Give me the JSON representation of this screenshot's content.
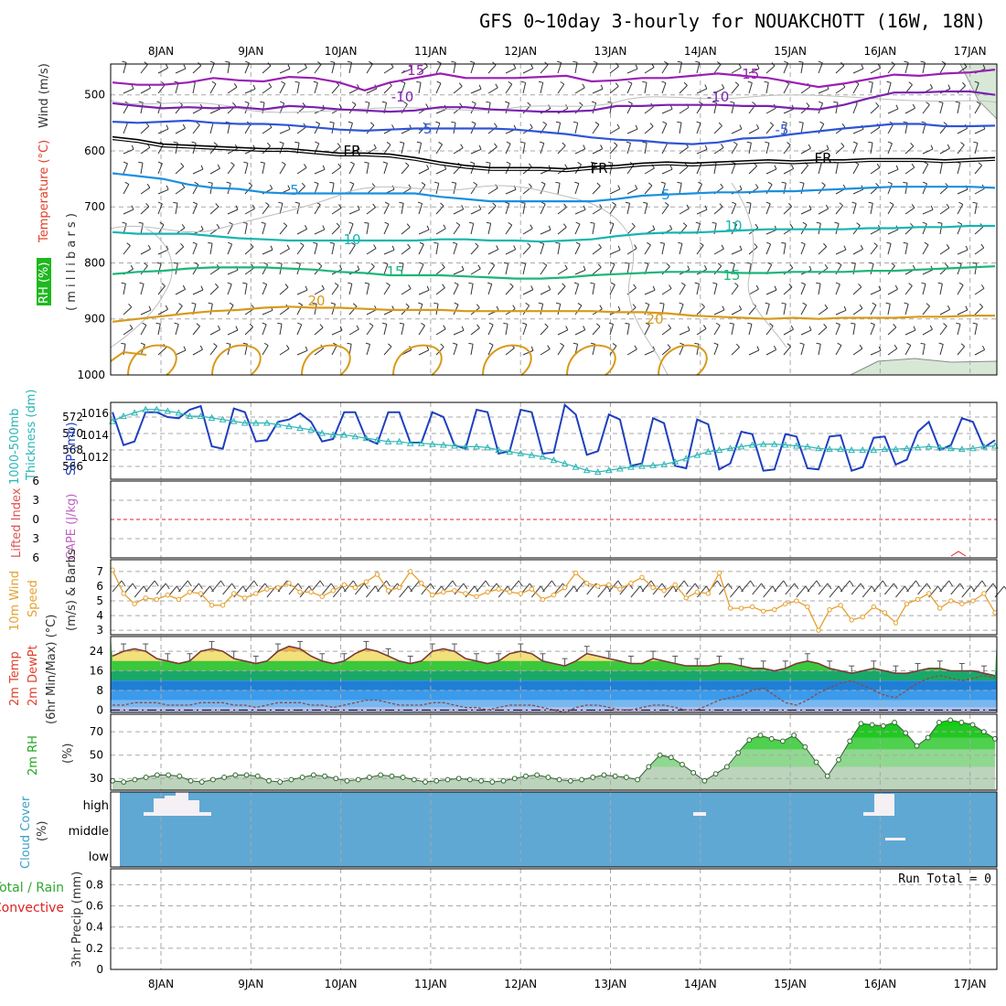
{
  "title": "GFS 0~10day 3-hourly for NOUAKCHOTT (16W, 18N)",
  "dates": [
    "8JAN",
    "9JAN",
    "10JAN",
    "11JAN",
    "12JAN",
    "13JAN",
    "14JAN",
    "15JAN",
    "16JAN",
    "17JAN"
  ],
  "run_total": "Run Total = 0",
  "colors": {
    "temp_neg15": "#9a1fb5",
    "temp_neg10": "#7a22b0",
    "temp_neg5": "#2f55d6",
    "temp_fr": "#000000",
    "temp_5": "#1a8fe0",
    "temp_10": "#16b5b0",
    "temp_15": "#1cb57a",
    "temp_20": "#d89a1a",
    "rh_grey": "#bdbdbd",
    "slp": "#1f3fbf",
    "thickness": "#2cb5b5",
    "wind10m": "#e6a030",
    "tmax_fill": "#f0b040",
    "rh_fill": "#2ecc2e",
    "cloud": "#5fa8d3",
    "precip_red": "#e02020"
  },
  "chart_data": [
    {
      "panel": "upper-air",
      "type": "contour",
      "ylabels": [
        "Temperature (°C)",
        "Wind (m/s)",
        "RH (%)",
        "( m i l l i b a r s )"
      ],
      "yticks": [
        500,
        600,
        700,
        800,
        900,
        1000
      ],
      "ylim": [
        1000,
        445
      ],
      "contour_labels": [
        "-15",
        "-10",
        "-5",
        "FR",
        "5",
        "10",
        "15",
        "20",
        "10"
      ],
      "series": [
        {
          "name": "-15",
          "values": [
            478,
            482,
            482,
            478,
            470,
            474,
            476,
            468,
            470,
            478,
            492,
            478,
            470,
            462,
            470,
            470,
            470,
            468,
            466,
            476,
            474,
            470,
            470,
            466,
            462,
            466,
            470,
            478,
            486,
            480,
            472,
            464,
            466,
            462,
            460,
            455
          ]
        },
        {
          "name": "-10",
          "values": [
            515,
            520,
            524,
            522,
            524,
            522,
            526,
            520,
            522,
            526,
            528,
            530,
            528,
            522,
            522,
            526,
            528,
            530,
            530,
            528,
            520,
            520,
            518,
            518,
            518,
            520,
            520,
            524,
            526,
            518,
            506,
            496,
            496,
            494,
            494,
            500
          ]
        },
        {
          "name": "-5",
          "values": [
            548,
            550,
            548,
            546,
            550,
            552,
            552,
            554,
            558,
            562,
            564,
            562,
            560,
            560,
            560,
            560,
            562,
            566,
            570,
            576,
            580,
            582,
            586,
            588,
            585,
            578,
            576,
            570,
            565,
            560,
            556,
            552,
            552,
            556,
            556,
            555
          ]
        },
        {
          "name": "FR",
          "values": [
            575,
            580,
            588,
            590,
            592,
            594,
            596,
            596,
            600,
            604,
            604,
            606,
            612,
            620,
            626,
            630,
            630,
            630,
            632,
            628,
            626,
            622,
            620,
            622,
            620,
            618,
            616,
            618,
            616,
            616,
            614,
            614,
            614,
            616,
            614,
            612
          ]
        },
        {
          "name": "5",
          "values": [
            640,
            645,
            650,
            660,
            666,
            668,
            674,
            676,
            676,
            676,
            676,
            676,
            676,
            682,
            686,
            690,
            690,
            690,
            690,
            690,
            686,
            680,
            678,
            676,
            674,
            674,
            672,
            672,
            670,
            668,
            666,
            664,
            664,
            664,
            664,
            666
          ]
        },
        {
          "name": "10",
          "values": [
            745,
            748,
            748,
            748,
            752,
            756,
            758,
            760,
            760,
            760,
            760,
            760,
            760,
            758,
            758,
            760,
            760,
            762,
            760,
            758,
            752,
            748,
            746,
            746,
            744,
            742,
            740,
            740,
            740,
            740,
            738,
            738,
            736,
            736,
            734,
            734
          ]
        },
        {
          "name": "15",
          "values": [
            820,
            816,
            814,
            810,
            808,
            808,
            808,
            810,
            812,
            816,
            818,
            822,
            822,
            822,
            824,
            826,
            828,
            828,
            826,
            822,
            820,
            818,
            816,
            816,
            816,
            818,
            818,
            816,
            816,
            816,
            814,
            814,
            812,
            810,
            808,
            806
          ]
        },
        {
          "name": "20",
          "values": [
            905,
            900,
            895,
            890,
            886,
            884,
            880,
            878,
            880,
            880,
            882,
            884,
            884,
            884,
            886,
            886,
            886,
            886,
            886,
            886,
            888,
            888,
            890,
            894,
            896,
            898,
            900,
            898,
            900,
            898,
            898,
            898,
            896,
            896,
            894,
            894
          ]
        }
      ]
    },
    {
      "panel": "slp-thickness",
      "type": "line",
      "ylabels": [
        "SLP (mb)",
        "1000-500mb",
        "Thickness (dm)"
      ],
      "left_ticks": [
        "572",
        "570",
        "568",
        "566"
      ],
      "right_ticks": [
        "1016",
        "1014",
        "1012"
      ],
      "ylim": [
        1010.5,
        1016.8
      ],
      "series": [
        {
          "name": "SLP",
          "values": [
            1016,
            1013.3,
            1013.6,
            1016,
            1016,
            1015.6,
            1015.5,
            1016.2,
            1016.5,
            1013.2,
            1013,
            1016.3,
            1016,
            1013.6,
            1013.7,
            1015.2,
            1015.4,
            1015.9,
            1015.2,
            1013.6,
            1013.8,
            1016,
            1016,
            1013.8,
            1013.4,
            1016,
            1016,
            1013.5,
            1013.5,
            1016,
            1015.6,
            1013.3,
            1013,
            1016.2,
            1016,
            1012.6,
            1012.8,
            1016.2,
            1016,
            1012.6,
            1012.7,
            1016.6,
            1015.8,
            1012.5,
            1012.8,
            1015.8,
            1015.4,
            1011.6,
            1011.8,
            1015.5,
            1015.1,
            1011.6,
            1011.4,
            1015.4,
            1015,
            1011.3,
            1011.8,
            1014.4,
            1014.2,
            1011.2,
            1011.3,
            1014.2,
            1014,
            1011.4,
            1011.3,
            1014,
            1014.1,
            1011.2,
            1011.5,
            1013.9,
            1014,
            1011.7,
            1012.1,
            1014.4,
            1015.2,
            1012.9,
            1013.3,
            1015.5,
            1015.2,
            1013.1,
            1013.7
          ]
        },
        {
          "name": "Thickness",
          "values": [
            572,
            572.6,
            573,
            573.4,
            573.4,
            573.2,
            573,
            572.6,
            572.6,
            572.4,
            572.2,
            572,
            571.8,
            571.8,
            571.8,
            571.6,
            571.4,
            571.2,
            571,
            570.6,
            570.4,
            570.4,
            570.2,
            570,
            569.8,
            569.6,
            569.6,
            569.4,
            569.4,
            569.3,
            569.2,
            569.1,
            569,
            569,
            568.9,
            568.6,
            568.4,
            568.2,
            568,
            567.8,
            567.4,
            567,
            566.6,
            566.2,
            566,
            566.2,
            566.4,
            566.6,
            566.7,
            566.8,
            566.9,
            567.2,
            567.6,
            568,
            568.4,
            568.6,
            568.8,
            569,
            569.2,
            569.3,
            569.3,
            569.2,
            569.1,
            569,
            568.8,
            568.7,
            568.7,
            568.6,
            568.6,
            568.6,
            568.7,
            568.7,
            568.8,
            568.9,
            569,
            568.9,
            568.8,
            568.7,
            568.8,
            569,
            569.1
          ]
        }
      ]
    },
    {
      "panel": "cape-li",
      "type": "line",
      "ylabels": [
        "Lifted Index",
        "CAPE (J/kg)"
      ],
      "yticks": [
        "6",
        "3",
        "0",
        "3",
        "6"
      ],
      "ylim": [
        -6,
        6
      ],
      "reference_line": 0
    },
    {
      "panel": "wind10m",
      "type": "line",
      "ylabels": [
        "10m Wind",
        "Speed",
        "(m/s) & Barbs"
      ],
      "yticks": [
        "7",
        "6",
        "5",
        "4",
        "3"
      ],
      "ylim": [
        2.7,
        7.8
      ],
      "series": [
        {
          "name": "10m Wind Speed",
          "values": [
            7.1,
            5.5,
            4.8,
            5.2,
            5.1,
            5.4,
            5.1,
            5.6,
            5.5,
            4.7,
            4.7,
            5.5,
            5.2,
            5.5,
            5.8,
            5.9,
            6.2,
            5.6,
            5.6,
            5.3,
            5.7,
            6.1,
            5.9,
            6.3,
            6.8,
            5.7,
            5.9,
            7.0,
            6.2,
            5.4,
            5.6,
            5.7,
            5.5,
            5.3,
            5.6,
            5.8,
            5.6,
            5.5,
            5.8,
            5.1,
            5.4,
            5.9,
            6.9,
            6.2,
            6.0,
            6.1,
            5.8,
            6.2,
            6.6,
            5.9,
            5.7,
            6.1,
            5.2,
            5.6,
            5.5,
            6.9,
            4.5,
            4.5,
            4.6,
            4.3,
            4.4,
            4.8,
            5.0,
            4.6,
            3.0,
            4.4,
            4.7,
            3.7,
            3.9,
            4.6,
            4.2,
            3.5,
            4.8,
            5.1,
            5.5,
            4.5,
            5.0,
            4.8,
            5.0,
            5.5,
            4.2
          ]
        }
      ]
    },
    {
      "panel": "temp-dewpoint",
      "type": "area",
      "ylabels": [
        "2m Temp",
        "2m DewPt",
        "(6hr Min/Max) (°C)"
      ],
      "yticks": [
        "24",
        "16",
        "8",
        "0"
      ],
      "ylim": [
        -1,
        30
      ],
      "series": [
        {
          "name": "2m Temp",
          "values": [
            22,
            24,
            25,
            24,
            21,
            20,
            19,
            20,
            24,
            25,
            24,
            21,
            20,
            19,
            20,
            24,
            26,
            25,
            22,
            20,
            19,
            20,
            23,
            25,
            24,
            22,
            20,
            19,
            20,
            24,
            25,
            24,
            21,
            20,
            19,
            20,
            23,
            24,
            23,
            20,
            19,
            18,
            20,
            23,
            22,
            21,
            20,
            19,
            19,
            21,
            20,
            19,
            18,
            18,
            18,
            19,
            19,
            18,
            17,
            17,
            16,
            17,
            19,
            20,
            19,
            17,
            16,
            15,
            16,
            17,
            16,
            15,
            15,
            16,
            17,
            17,
            16,
            16,
            16,
            15,
            14
          ]
        },
        {
          "name": "2m DewPt",
          "values": [
            2,
            2,
            3,
            3,
            3,
            2,
            2,
            2,
            3,
            3,
            3,
            2,
            2,
            1,
            2,
            3,
            3,
            3,
            2,
            2,
            1,
            2,
            3,
            4,
            4,
            3,
            2,
            2,
            2,
            3,
            3,
            2,
            1,
            1,
            0,
            1,
            2,
            2,
            2,
            1,
            0,
            -1,
            1,
            2,
            2,
            1,
            0,
            0,
            1,
            2,
            2,
            1,
            0,
            0,
            2,
            4,
            5,
            6,
            8,
            9,
            6,
            3,
            2,
            4,
            7,
            9,
            11,
            12,
            10,
            8,
            6,
            5,
            8,
            11,
            13,
            14,
            13,
            12,
            13,
            14,
            13
          ]
        }
      ]
    },
    {
      "panel": "rh2m",
      "type": "area",
      "ylabels": [
        "2m RH",
        "(%)"
      ],
      "yticks": [
        "70",
        "50",
        "30"
      ],
      "ylim": [
        20,
        85
      ],
      "series": [
        {
          "name": "2m RH",
          "values": [
            28,
            27,
            29,
            31,
            33,
            33,
            32,
            28,
            27,
            29,
            31,
            33,
            33,
            32,
            28,
            27,
            29,
            31,
            33,
            32,
            30,
            28,
            29,
            31,
            33,
            32,
            31,
            29,
            27,
            28,
            29,
            30,
            29,
            28,
            27,
            28,
            30,
            32,
            33,
            31,
            29,
            28,
            29,
            31,
            33,
            32,
            31,
            29,
            40,
            50,
            48,
            42,
            35,
            28,
            34,
            40,
            52,
            63,
            67,
            64,
            62,
            67,
            57,
            44,
            32,
            46,
            62,
            77,
            76,
            75,
            78,
            69,
            58,
            65,
            78,
            80,
            78,
            76,
            70,
            64
          ]
        }
      ]
    },
    {
      "panel": "cloud",
      "type": "bar",
      "ylabels": [
        "Cloud Cover",
        "(%)"
      ],
      "yticks": [
        "high",
        "middle",
        "low"
      ]
    },
    {
      "panel": "precip",
      "type": "bar",
      "ylabels": [
        "Total / Rain",
        "Convective",
        "3hr Precip (mm)"
      ],
      "yticks": [
        "0.8",
        "0.6",
        "0.4",
        "0.2",
        "0"
      ],
      "ylim": [
        0,
        0.95
      ],
      "values": []
    }
  ]
}
